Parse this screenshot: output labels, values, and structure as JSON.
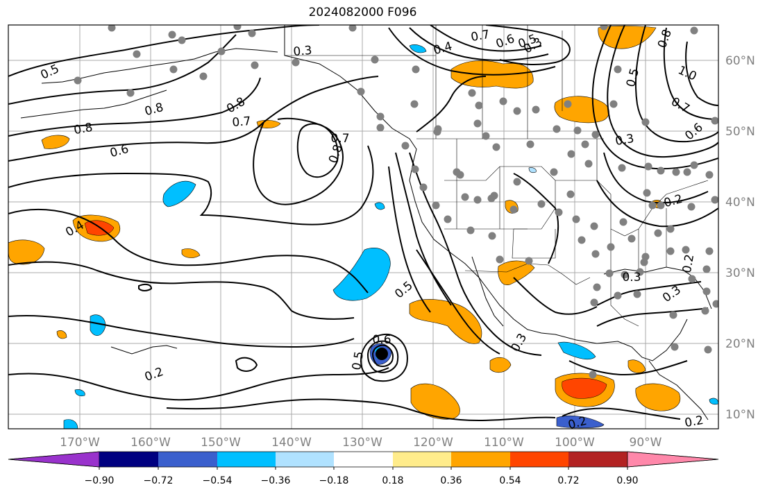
{
  "title": "2024082000 F096",
  "longitude_labels": [
    "170°W",
    "160°W",
    "150°W",
    "140°W",
    "130°W",
    "120°W",
    "110°W",
    "100°W",
    "90°W"
  ],
  "latitude_labels": [
    "60°N",
    "50°N",
    "40°N",
    "30°N",
    "20°N",
    "10°N"
  ],
  "contour_labels": [
    "0.5",
    "0.8",
    "0.8",
    "0.7",
    "0.8",
    "0.8",
    "0.7",
    "0.6",
    "0.3",
    "0.4",
    "0.7",
    "0.6",
    "0.5",
    "0.3",
    "0.8",
    "0.5",
    "1.0",
    "0.7",
    "0.6",
    "0.3",
    "0.2",
    "0.4",
    "0.5",
    "0.6",
    "0.5",
    "0.2",
    "0.3",
    "0.3",
    "0.2",
    "0.3",
    "0.2",
    "0.2"
  ],
  "colorbar": {
    "tick_labels": [
      "−0.90",
      "−0.72",
      "−0.54",
      "−0.36",
      "−0.18",
      "0.18",
      "0.36",
      "0.54",
      "0.72",
      "0.90"
    ],
    "bounds": [
      -0.9,
      -0.72,
      -0.54,
      -0.36,
      -0.18,
      0.18,
      0.36,
      0.54,
      0.72,
      0.9
    ],
    "colors": [
      "#9932cc",
      "#000080",
      "#3a5fcd",
      "#00bfff",
      "#b0e2ff",
      "#ffffff",
      "#ffec8b",
      "#ffa500",
      "#ff4500",
      "#b22222",
      "#ff88aa"
    ]
  }
}
